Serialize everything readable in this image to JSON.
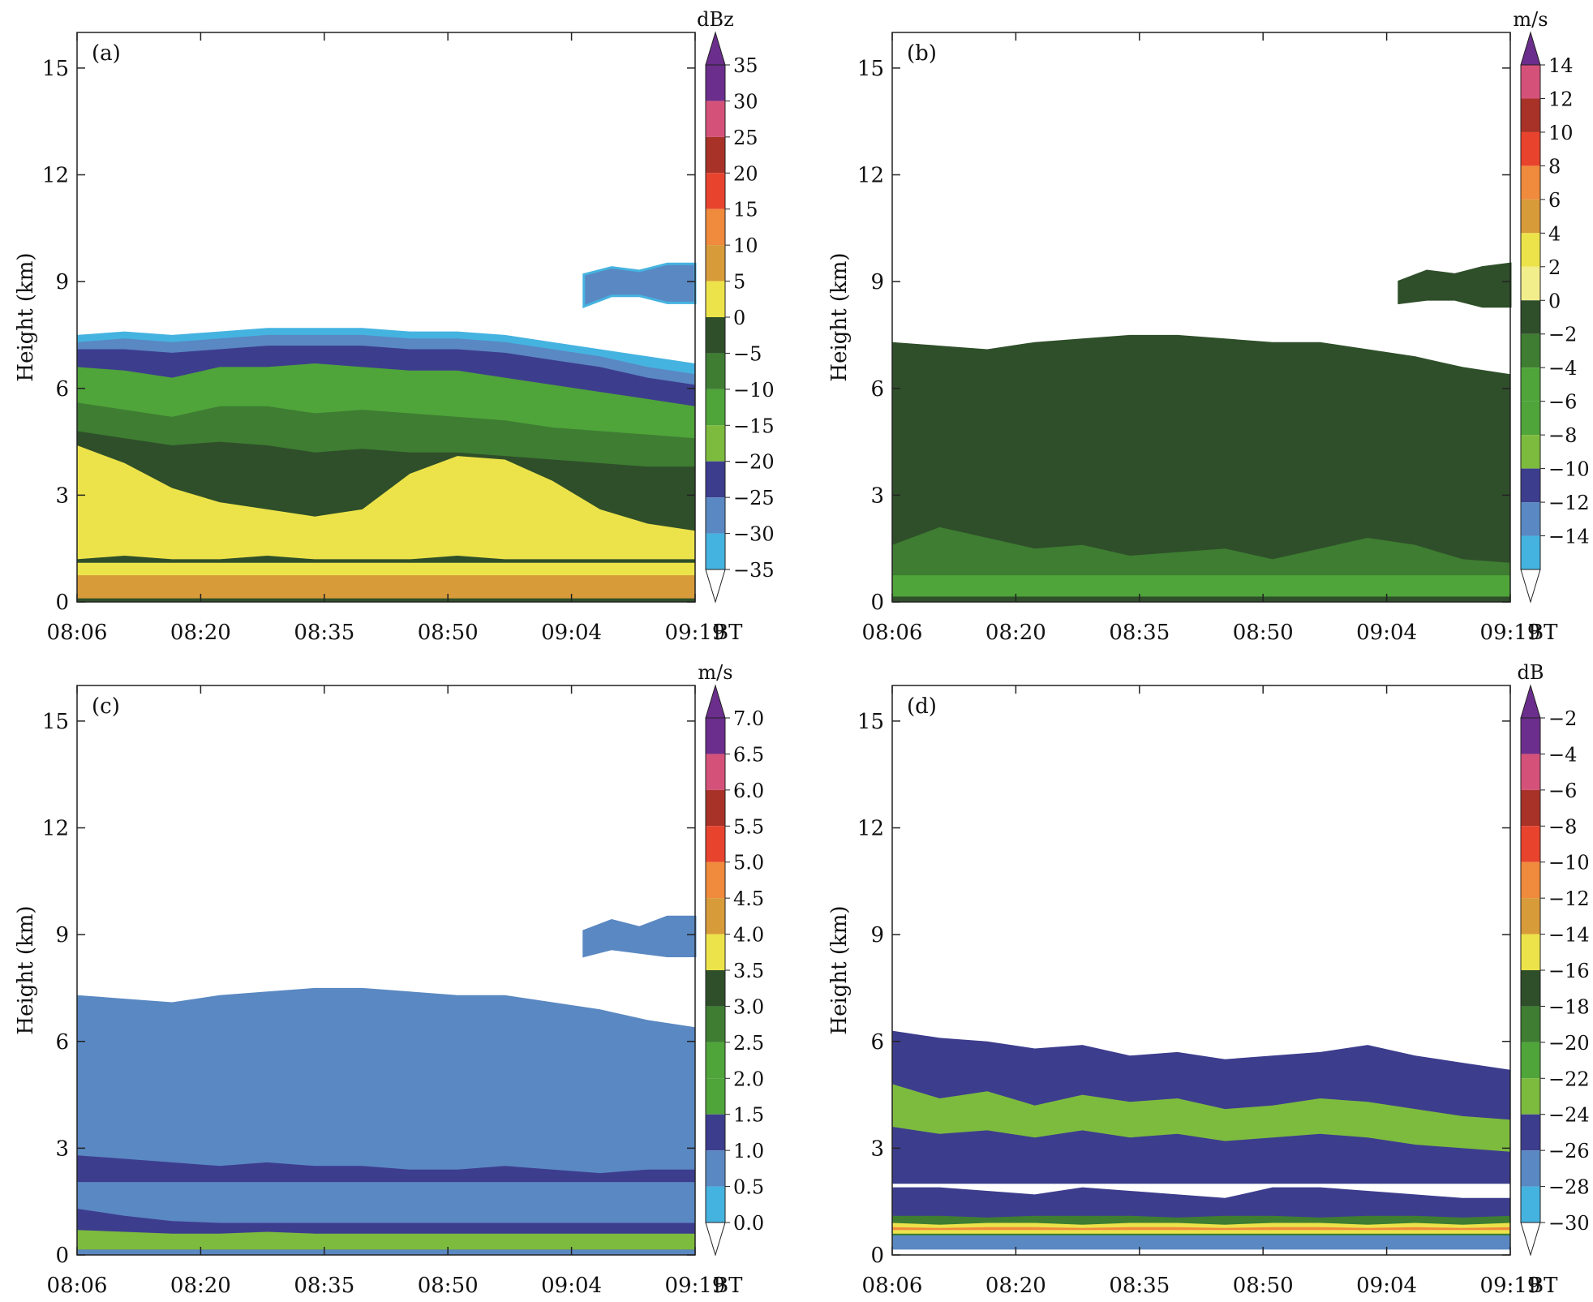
{
  "figure": {
    "time_axis_unit": "BT",
    "y_axis_label": "Height (km)"
  },
  "chart_data": [
    {
      "type": "heatmap",
      "panel_label": "(a)",
      "quantity_unit": "dBz",
      "x_ticks": [
        "08:06",
        "08:20",
        "08:35",
        "08:50",
        "09:04",
        "09:19"
      ],
      "x_unit": "BT",
      "y_ticks": [
        0,
        3,
        6,
        9,
        12,
        15
      ],
      "ylabel": "Height (km)",
      "ylim": [
        0,
        16
      ],
      "colorbar": {
        "labels": [
          "35",
          "30",
          "25",
          "20",
          "15",
          "10",
          "5",
          "0",
          "−5",
          "−10",
          "−15",
          "−20",
          "−25",
          "−30",
          "−35"
        ],
        "colors": [
          "#6b2e8c",
          "#d4527a",
          "#a83228",
          "#e8432d",
          "#f08a3c",
          "#d89b3a",
          "#ece34a",
          "#2f4f2a",
          "#3e7d32",
          "#4fa43a",
          "#7dbb3e",
          "#3d3d8e",
          "#5a88c2",
          "#45b3e0"
        ],
        "extend_top_color": "#6b2e8c"
      },
      "layers": [
        {
          "color": "#45b3e0",
          "top": [
            7.5,
            7.6,
            7.5,
            7.6,
            7.7,
            7.7,
            7.7,
            7.6,
            7.6,
            7.5,
            7.3,
            7.1,
            6.9,
            6.7
          ],
          "bottom": [
            0,
            0,
            0,
            0,
            0,
            0,
            0,
            0,
            0,
            0,
            0,
            0,
            0,
            0
          ]
        },
        {
          "color": "#5a88c2",
          "top": [
            7.3,
            7.4,
            7.3,
            7.4,
            7.5,
            7.5,
            7.5,
            7.4,
            7.4,
            7.3,
            7.1,
            6.9,
            6.6,
            6.4
          ],
          "bottom": [
            0,
            0,
            0,
            0,
            0,
            0,
            0,
            0,
            0,
            0,
            0,
            0,
            0,
            0
          ]
        },
        {
          "color": "#3d3d8e",
          "top": [
            7.1,
            7.1,
            7.0,
            7.1,
            7.2,
            7.2,
            7.2,
            7.1,
            7.1,
            7.0,
            6.8,
            6.6,
            6.3,
            6.1
          ],
          "bottom": [
            0,
            0,
            0,
            0,
            0,
            0,
            0,
            0,
            0,
            0,
            0,
            0,
            0,
            0
          ]
        },
        {
          "color": "#4fa43a",
          "top": [
            6.6,
            6.5,
            6.3,
            6.6,
            6.6,
            6.7,
            6.6,
            6.5,
            6.5,
            6.3,
            6.1,
            5.9,
            5.7,
            5.5
          ],
          "bottom": [
            0,
            0,
            0,
            0,
            0,
            0,
            0,
            0,
            0,
            0,
            0,
            0,
            0,
            0
          ]
        },
        {
          "color": "#3e7d32",
          "top": [
            5.6,
            5.4,
            5.2,
            5.5,
            5.5,
            5.3,
            5.4,
            5.3,
            5.2,
            5.1,
            4.9,
            4.8,
            4.7,
            4.6
          ],
          "bottom": [
            0,
            0,
            0,
            0,
            0,
            0,
            0,
            0,
            0,
            0,
            0,
            0,
            0,
            0
          ]
        },
        {
          "color": "#2f4f2a",
          "top": [
            4.8,
            4.6,
            4.4,
            4.5,
            4.4,
            4.2,
            4.3,
            4.2,
            4.2,
            4.1,
            4.0,
            3.9,
            3.8,
            3.8
          ],
          "bottom": [
            0,
            0,
            0,
            0,
            0,
            0,
            0,
            0,
            0,
            0,
            0,
            0,
            0,
            0
          ]
        },
        {
          "color": "#ece34a",
          "top": [
            4.4,
            3.9,
            3.2,
            2.8,
            2.6,
            2.4,
            2.6,
            3.6,
            4.1,
            4.0,
            3.4,
            2.6,
            2.2,
            2.0
          ],
          "bottom": [
            1.2,
            1.3,
            1.2,
            1.2,
            1.3,
            1.2,
            1.2,
            1.2,
            1.3,
            1.2,
            1.2,
            1.2,
            1.2,
            1.2
          ]
        },
        {
          "color": "#ece34a",
          "top": [
            1.1,
            1.1,
            1.1,
            1.1,
            1.1,
            1.1,
            1.1,
            1.1,
            1.1,
            1.1,
            1.1,
            1.1,
            1.1,
            1.1
          ],
          "bottom": [
            0.2,
            0.2,
            0.2,
            0.2,
            0.2,
            0.2,
            0.2,
            0.2,
            0.2,
            0.2,
            0.2,
            0.2,
            0.2,
            0.2
          ]
        },
        {
          "color": "#d89b3a",
          "top": [
            0.75,
            0.75,
            0.75,
            0.75,
            0.75,
            0.75,
            0.75,
            0.75,
            0.75,
            0.75,
            0.75,
            0.75,
            0.75,
            0.75
          ],
          "bottom": [
            0.1,
            0.1,
            0.1,
            0.1,
            0.1,
            0.1,
            0.1,
            0.1,
            0.1,
            0.1,
            0.1,
            0.1,
            0.1,
            0.1
          ]
        }
      ],
      "upper_cloud": {
        "x0": 0.82,
        "x1": 1.0,
        "color": "#5a88c2",
        "edge_color": "#45b3e0",
        "top": [
          9.2,
          9.4,
          9.3,
          9.5,
          9.5
        ],
        "bottom": [
          8.3,
          8.6,
          8.6,
          8.4,
          8.4
        ]
      }
    },
    {
      "type": "heatmap",
      "panel_label": "(b)",
      "quantity_unit": "m/s",
      "x_ticks": [
        "08:06",
        "08:20",
        "08:35",
        "08:50",
        "09:04",
        "09:19"
      ],
      "x_unit": "BT",
      "y_ticks": [
        0,
        3,
        6,
        9,
        12,
        15
      ],
      "ylabel": "Height (km)",
      "ylim": [
        0,
        16
      ],
      "colorbar": {
        "labels": [
          "14",
          "12",
          "10",
          "8",
          "6",
          "4",
          "2",
          "0",
          "−2",
          "−4",
          "−6",
          "−8",
          "−10",
          "−12",
          "−14"
        ],
        "colors": [
          "#d4527a",
          "#a83228",
          "#e8432d",
          "#f08a3c",
          "#d89b3a",
          "#ece34a",
          "#f2ee8c",
          "#2f4f2a",
          "#3e7d32",
          "#4fa43a",
          "#4fa43a",
          "#7dbb3e",
          "#3d3d8e",
          "#5a88c2",
          "#45b3e0"
        ],
        "extend_top_color": "#6b2e8c"
      },
      "layers": [
        {
          "color": "#2f4f2a",
          "top": [
            7.3,
            7.2,
            7.1,
            7.3,
            7.4,
            7.5,
            7.5,
            7.4,
            7.3,
            7.3,
            7.1,
            6.9,
            6.6,
            6.4
          ],
          "bottom": [
            0,
            0,
            0,
            0,
            0,
            0,
            0,
            0,
            0,
            0,
            0,
            0,
            0,
            0
          ]
        },
        {
          "color": "#3e7d32",
          "top": [
            1.6,
            2.1,
            1.8,
            1.5,
            1.6,
            1.3,
            1.4,
            1.5,
            1.2,
            1.5,
            1.8,
            1.6,
            1.2,
            1.1
          ],
          "bottom": [
            0.15,
            0.15,
            0.15,
            0.15,
            0.15,
            0.15,
            0.15,
            0.15,
            0.15,
            0.15,
            0.15,
            0.15,
            0.15,
            0.15
          ]
        },
        {
          "color": "#4fa43a",
          "top": [
            0.75,
            0.75,
            0.75,
            0.75,
            0.75,
            0.75,
            0.75,
            0.75,
            0.75,
            0.75,
            0.75,
            0.75,
            0.75,
            0.75
          ],
          "bottom": [
            0.15,
            0.15,
            0.15,
            0.15,
            0.15,
            0.15,
            0.15,
            0.15,
            0.15,
            0.15,
            0.15,
            0.15,
            0.15,
            0.15
          ]
        }
      ],
      "upper_cloud": {
        "x0": 0.82,
        "x1": 1.0,
        "color": "#2f4f2a",
        "edge_color": "#2f4f2a",
        "top": [
          9.0,
          9.3,
          9.2,
          9.4,
          9.5
        ],
        "bottom": [
          8.4,
          8.5,
          8.5,
          8.3,
          8.3
        ]
      }
    },
    {
      "type": "heatmap",
      "panel_label": "(c)",
      "quantity_unit": "m/s",
      "x_ticks": [
        "08:06",
        "08:20",
        "08:35",
        "08:50",
        "09:04",
        "09:19"
      ],
      "x_unit": "BT",
      "y_ticks": [
        0,
        3,
        6,
        9,
        12,
        15
      ],
      "ylabel": "Height (km)",
      "ylim": [
        0,
        16
      ],
      "colorbar": {
        "labels": [
          "7.0",
          "6.5",
          "6.0",
          "5.5",
          "5.0",
          "4.5",
          "4.0",
          "3.5",
          "3.0",
          "2.5",
          "2.0",
          "1.5",
          "1.0",
          "0.5",
          "0.0"
        ],
        "colors": [
          "#6b2e8c",
          "#d4527a",
          "#a83228",
          "#e8432d",
          "#f08a3c",
          "#d89b3a",
          "#ece34a",
          "#2f4f2a",
          "#3e7d32",
          "#4fa43a",
          "#4fa43a",
          "#3d3d8e",
          "#5a88c2",
          "#45b3e0"
        ],
        "extend_top_color": "#6b2e8c"
      },
      "layers": [
        {
          "color": "#5a88c2",
          "top": [
            7.3,
            7.2,
            7.1,
            7.3,
            7.4,
            7.5,
            7.5,
            7.4,
            7.3,
            7.3,
            7.1,
            6.9,
            6.6,
            6.4
          ],
          "bottom": [
            0,
            0,
            0,
            0,
            0,
            0,
            0,
            0,
            0,
            0,
            0,
            0,
            0,
            0
          ]
        },
        {
          "color": "#3d3d8e",
          "top": [
            2.8,
            2.7,
            2.6,
            2.5,
            2.6,
            2.5,
            2.5,
            2.4,
            2.4,
            2.5,
            2.4,
            2.3,
            2.4,
            2.4
          ],
          "bottom": [
            2.0,
            2.0,
            2.0,
            2.0,
            2.0,
            2.0,
            2.0,
            2.0,
            2.0,
            2.0,
            2.0,
            2.0,
            2.0,
            2.0
          ]
        },
        {
          "color": "#5a88c2",
          "top": [
            2.05,
            2.05,
            2.05,
            2.05,
            2.05,
            2.05,
            2.05,
            2.05,
            2.05,
            2.05,
            2.05,
            2.05,
            2.05,
            2.05
          ],
          "bottom": [
            1.3,
            1.2,
            1.1,
            1.0,
            1.0,
            0.9,
            0.9,
            0.9,
            0.9,
            0.9,
            0.9,
            0.9,
            0.9,
            0.9
          ]
        },
        {
          "color": "#3d3d8e",
          "top": [
            1.3,
            1.1,
            0.95,
            0.9,
            0.9,
            0.9,
            0.9,
            0.9,
            0.9,
            0.9,
            0.9,
            0.9,
            0.9,
            0.9
          ],
          "bottom": [
            0.15,
            0.15,
            0.15,
            0.15,
            0.15,
            0.15,
            0.15,
            0.15,
            0.15,
            0.15,
            0.15,
            0.15,
            0.15,
            0.15
          ]
        },
        {
          "color": "#7dbb3e",
          "top": [
            0.7,
            0.65,
            0.6,
            0.6,
            0.65,
            0.6,
            0.6,
            0.6,
            0.6,
            0.6,
            0.6,
            0.6,
            0.6,
            0.6
          ],
          "bottom": [
            0.15,
            0.15,
            0.15,
            0.15,
            0.15,
            0.15,
            0.15,
            0.15,
            0.15,
            0.15,
            0.15,
            0.15,
            0.15,
            0.15
          ]
        }
      ],
      "upper_cloud": {
        "x0": 0.82,
        "x1": 1.0,
        "color": "#5a88c2",
        "edge_color": "#5a88c2",
        "top": [
          9.1,
          9.4,
          9.2,
          9.5,
          9.5
        ],
        "bottom": [
          8.4,
          8.6,
          8.5,
          8.4,
          8.4
        ]
      }
    },
    {
      "type": "heatmap",
      "panel_label": "(d)",
      "quantity_unit": "dB",
      "x_ticks": [
        "08:06",
        "08:20",
        "08:35",
        "08:50",
        "09:04",
        "09:19"
      ],
      "x_unit": "BT",
      "y_ticks": [
        0,
        3,
        6,
        9,
        12,
        15
      ],
      "ylabel": "Height (km)",
      "ylim": [
        0,
        16
      ],
      "colorbar": {
        "labels": [
          "−2",
          "−4",
          "−6",
          "−8",
          "−10",
          "−12",
          "−14",
          "−16",
          "−18",
          "−20",
          "−22",
          "−24",
          "−26",
          "−28",
          "−30"
        ],
        "colors": [
          "#6b2e8c",
          "#d4527a",
          "#a83228",
          "#e8432d",
          "#f08a3c",
          "#d89b3a",
          "#ece34a",
          "#2f4f2a",
          "#3e7d32",
          "#4fa43a",
          "#7dbb3e",
          "#3d3d8e",
          "#5a88c2",
          "#45b3e0"
        ],
        "extend_top_color": "#6b2e8c"
      },
      "layers": [
        {
          "color": "#3d3d8e",
          "top": [
            6.3,
            6.1,
            6.0,
            5.8,
            5.9,
            5.6,
            5.7,
            5.5,
            5.6,
            5.7,
            5.9,
            5.6,
            5.4,
            5.2
          ],
          "bottom": [
            2.0,
            2.0,
            2.0,
            2.0,
            2.0,
            2.0,
            2.0,
            2.0,
            2.0,
            2.0,
            2.0,
            2.0,
            2.0,
            2.0
          ]
        },
        {
          "color": "#7dbb3e",
          "top": [
            4.8,
            4.4,
            4.6,
            4.2,
            4.5,
            4.3,
            4.4,
            4.1,
            4.2,
            4.4,
            4.3,
            4.1,
            3.9,
            3.8
          ],
          "bottom": [
            3.6,
            3.4,
            3.5,
            3.3,
            3.5,
            3.3,
            3.4,
            3.2,
            3.3,
            3.4,
            3.3,
            3.1,
            3.0,
            2.9
          ]
        },
        {
          "color": "#3d3d8e",
          "top": [
            1.9,
            1.9,
            1.8,
            1.7,
            1.9,
            1.8,
            1.7,
            1.6,
            1.9,
            1.9,
            1.8,
            1.7,
            1.6,
            1.6
          ],
          "bottom": [
            0.9,
            0.9,
            0.9,
            0.9,
            0.9,
            0.9,
            0.9,
            0.9,
            0.9,
            0.9,
            0.9,
            0.9,
            0.9,
            0.9
          ]
        },
        {
          "color": "#3e7d32",
          "top": [
            1.1,
            1.1,
            1.05,
            1.1,
            1.1,
            1.1,
            1.05,
            1.1,
            1.1,
            1.05,
            1.1,
            1.1,
            1.05,
            1.1
          ],
          "bottom": [
            0.45,
            0.45,
            0.45,
            0.45,
            0.45,
            0.45,
            0.45,
            0.45,
            0.45,
            0.45,
            0.45,
            0.45,
            0.45,
            0.45
          ]
        },
        {
          "color": "#ece34a",
          "top": [
            0.9,
            0.85,
            0.9,
            0.9,
            0.85,
            0.9,
            0.9,
            0.85,
            0.9,
            0.9,
            0.85,
            0.9,
            0.85,
            0.9
          ],
          "bottom": [
            0.6,
            0.6,
            0.6,
            0.6,
            0.6,
            0.6,
            0.6,
            0.6,
            0.6,
            0.6,
            0.6,
            0.6,
            0.6,
            0.6
          ]
        },
        {
          "color": "#f08a3c",
          "top": [
            0.78,
            0.76,
            0.78,
            0.78,
            0.76,
            0.78,
            0.78,
            0.76,
            0.78,
            0.78,
            0.76,
            0.78,
            0.76,
            0.78
          ],
          "bottom": [
            0.7,
            0.7,
            0.7,
            0.7,
            0.7,
            0.7,
            0.7,
            0.7,
            0.7,
            0.7,
            0.7,
            0.7,
            0.7,
            0.7
          ]
        },
        {
          "color": "#5a88c2",
          "top": [
            0.55,
            0.55,
            0.55,
            0.55,
            0.55,
            0.55,
            0.55,
            0.55,
            0.55,
            0.55,
            0.55,
            0.55,
            0.55,
            0.55
          ],
          "bottom": [
            0.15,
            0.15,
            0.15,
            0.15,
            0.15,
            0.15,
            0.15,
            0.15,
            0.15,
            0.15,
            0.15,
            0.15,
            0.15,
            0.15
          ]
        }
      ],
      "upper_cloud": null
    }
  ]
}
